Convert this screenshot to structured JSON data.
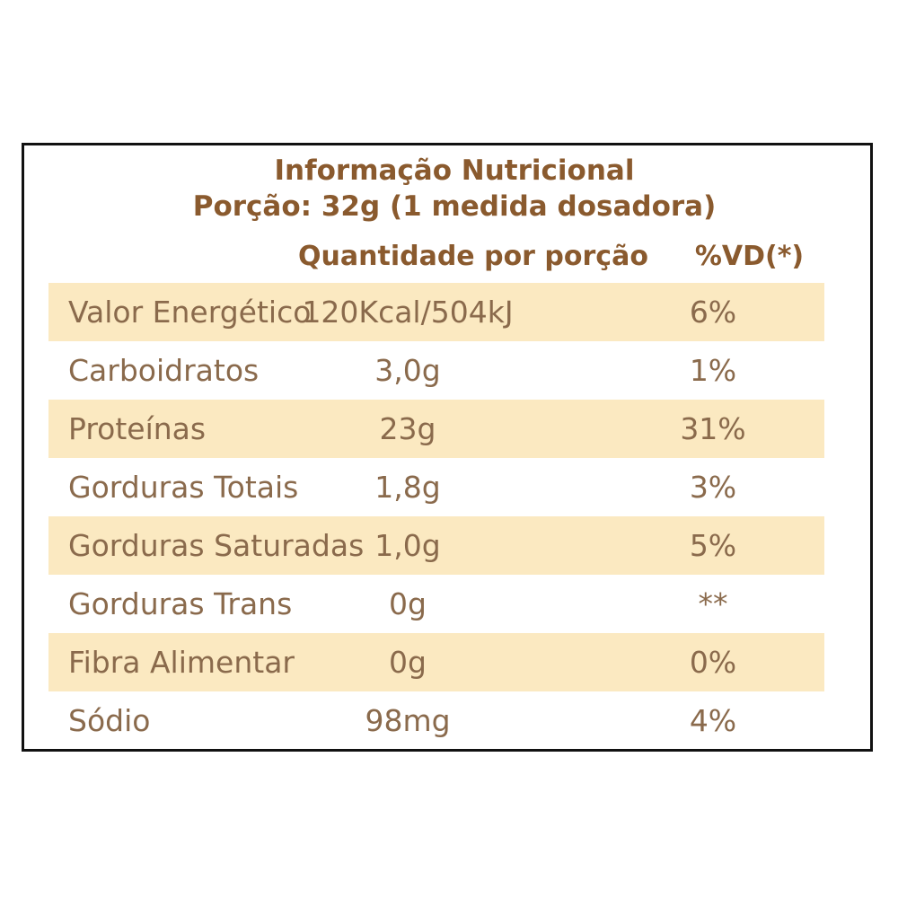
{
  "label": {
    "title": "Informação Nutricional",
    "portion": "Porção: 32g (1 medida dosadora)",
    "header_quantity": "Quantidade por porção",
    "header_vd": "%VD(*)",
    "rows": [
      {
        "name": "Valor Energético",
        "quantity": "120Kcal/504kJ",
        "vd": "6%"
      },
      {
        "name": "Carboidratos",
        "quantity": "3,0g",
        "vd": "1%"
      },
      {
        "name": "Proteínas",
        "quantity": "23g",
        "vd": "31%"
      },
      {
        "name": "Gorduras Totais",
        "quantity": "1,8g",
        "vd": "3%"
      },
      {
        "name": "Gorduras Saturadas",
        "quantity": "1,0g",
        "vd": "5%"
      },
      {
        "name": "Gorduras Trans",
        "quantity": "0g",
        "vd": "**"
      },
      {
        "name": "Fibra Alimentar",
        "quantity": "0g",
        "vd": "0%"
      },
      {
        "name": "Sódio",
        "quantity": "98mg",
        "vd": "4%"
      }
    ]
  },
  "colors": {
    "heading_text": "#8a5a2e",
    "row_text": "#8a6a4c",
    "row_shade": "#fbe9c1",
    "border": "#111111"
  }
}
